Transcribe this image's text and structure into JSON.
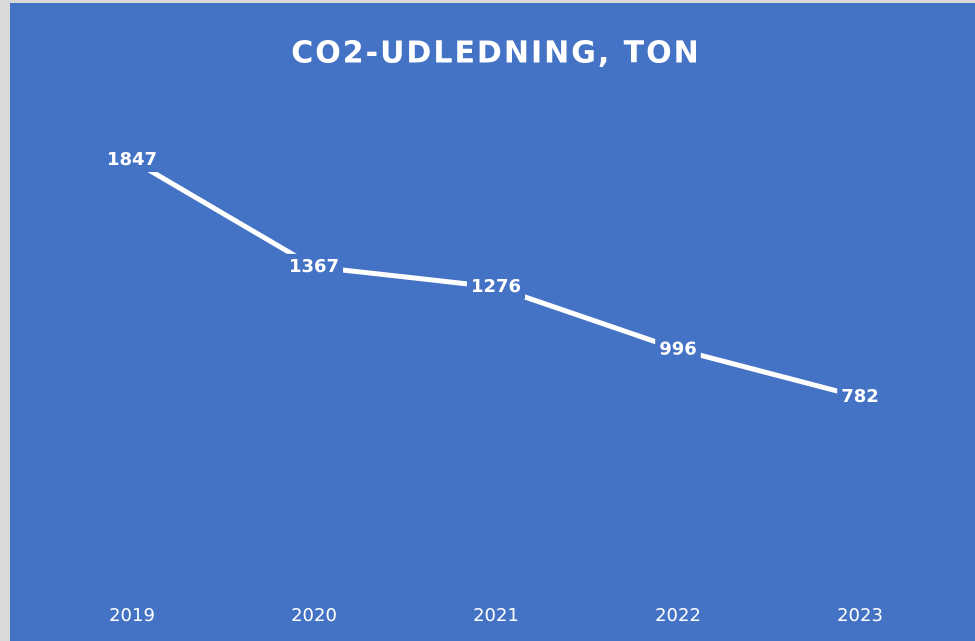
{
  "chart_data": {
    "type": "line",
    "title": "CO2-UDLEDNING, TON",
    "categories": [
      "2019",
      "2020",
      "2021",
      "2022",
      "2023"
    ],
    "series": [
      {
        "name": "CO2-udledning",
        "color": "#ffffff",
        "values": [
          1847,
          1367,
          1276,
          996,
          782
        ]
      }
    ],
    "ylim": [
      0,
      2000
    ]
  }
}
